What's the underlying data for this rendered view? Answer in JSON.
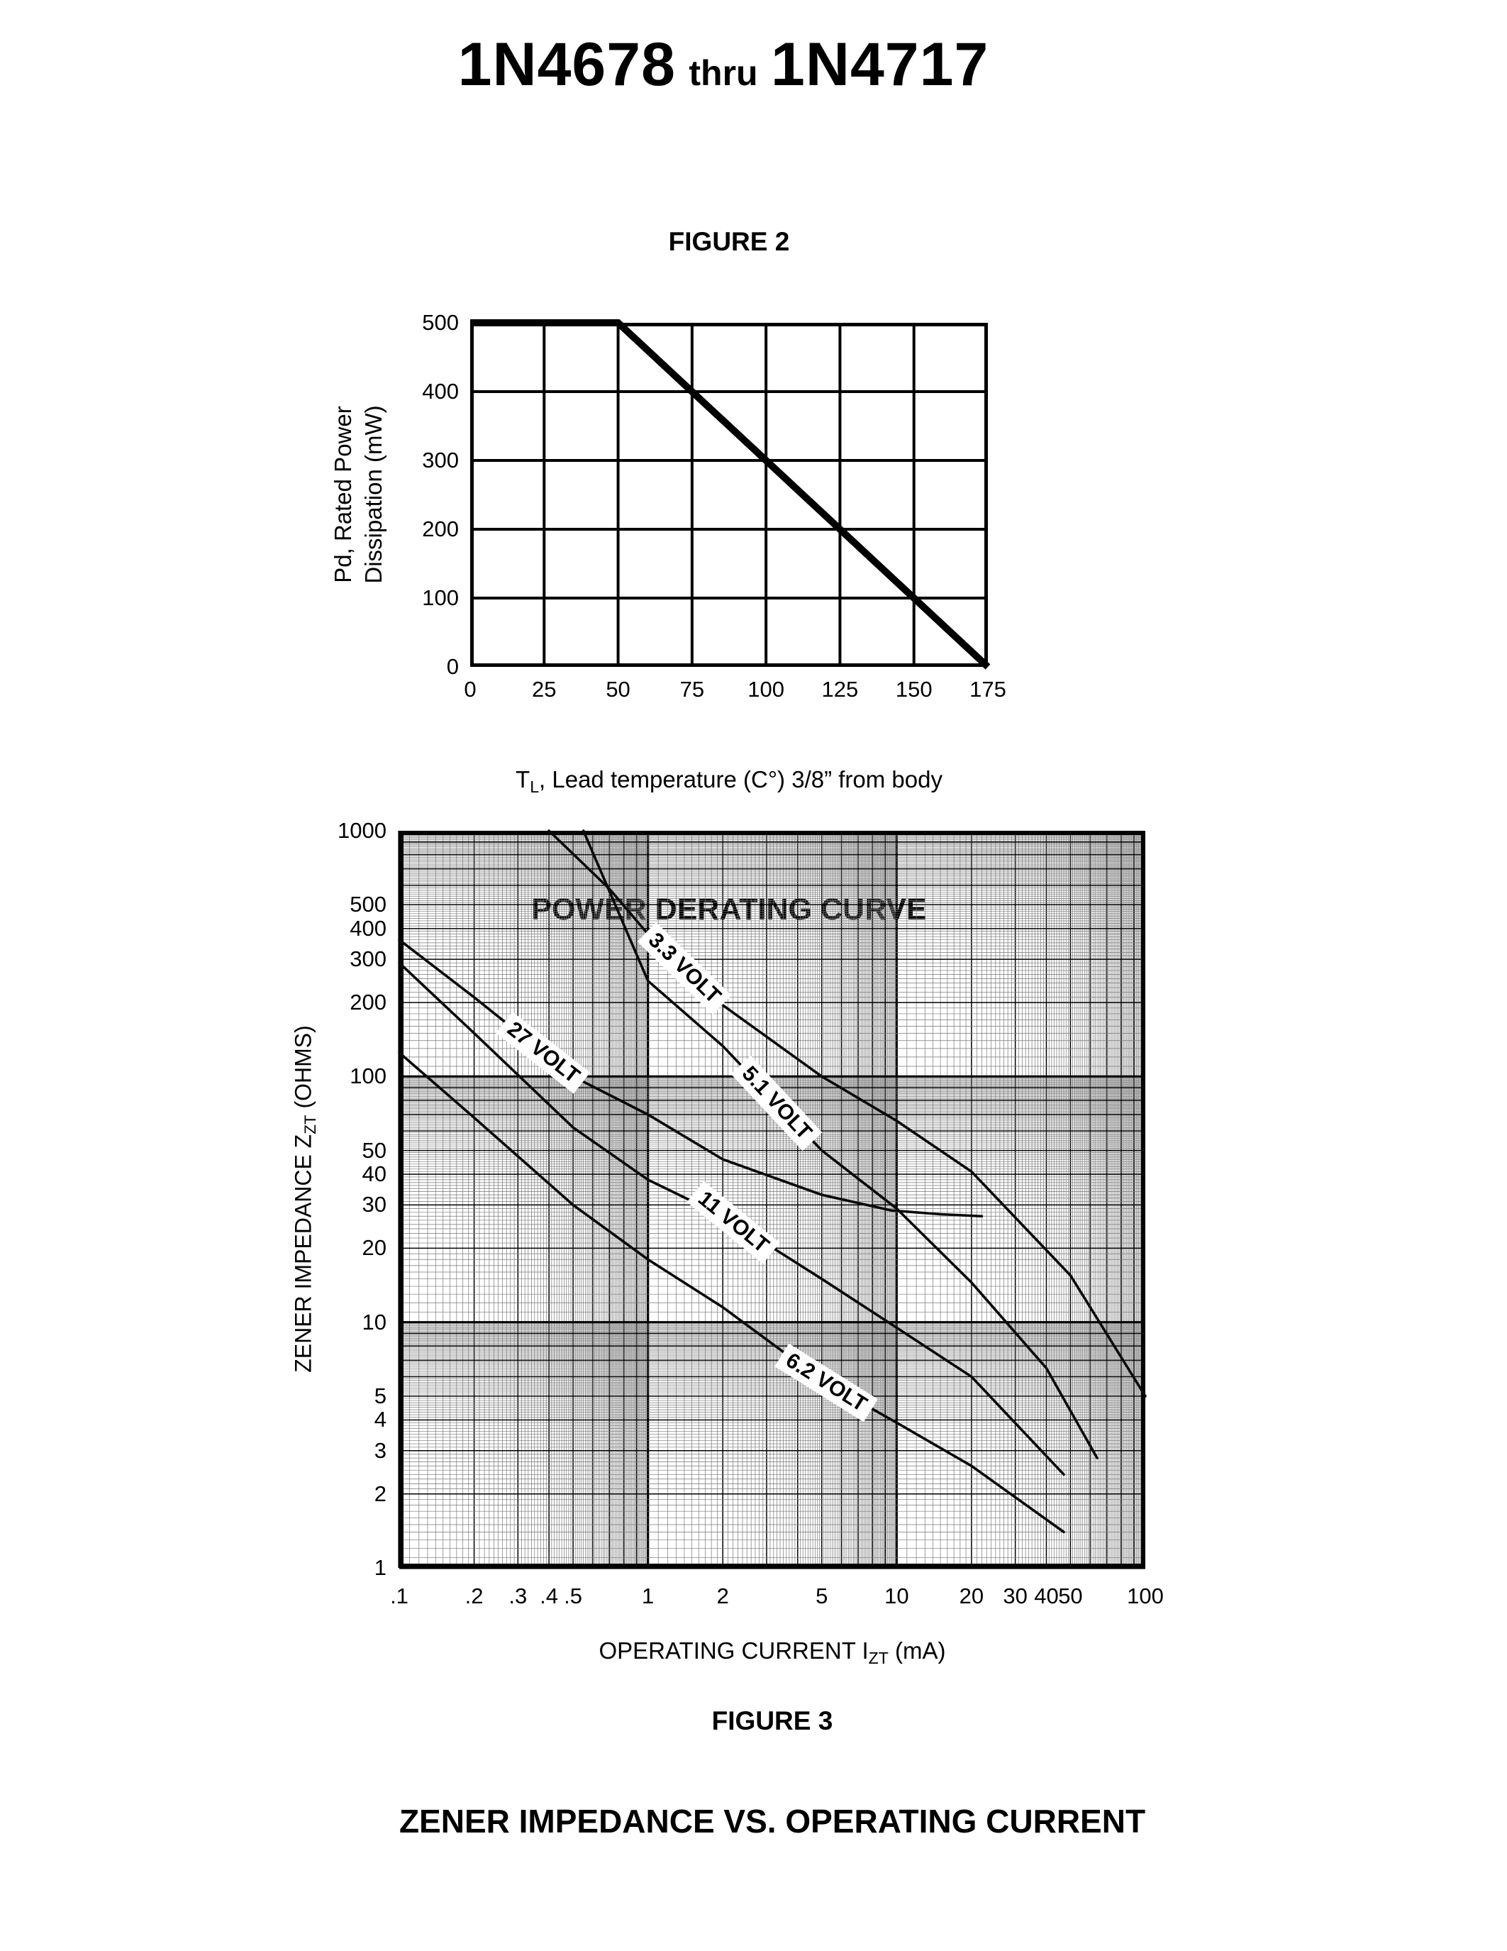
{
  "page": {
    "title_part1": "1N4678",
    "title_thru": "thru",
    "title_part2": "1N4717",
    "ink_color": "#000000",
    "paper_color": "#ffffff"
  },
  "figure2": {
    "heading": "FIGURE 2",
    "caption": "POWER DERATING CURVE",
    "y_axis_label_line1": "Pd, Rated Power",
    "y_axis_label_line2": "Dissipation (mW)",
    "x_axis_label_pre": "T",
    "x_axis_label_sub": "L",
    "x_axis_label_post": ", Lead temperature (C°) 3/8” from body"
  },
  "figure3": {
    "heading": "FIGURE 3",
    "caption": "ZENER IMPEDANCE VS. OPERATING CURRENT",
    "y_axis_label_pre": "ZENER IMPEDANCE Z",
    "y_axis_label_sub": "ZT",
    "y_axis_label_post": " (OHMS)",
    "x_axis_label_pre": "OPERATING CURRENT I",
    "x_axis_label_sub": "ZT",
    "x_axis_label_post": " (mA)"
  },
  "chart_data": [
    {
      "id": "power-derating-curve",
      "type": "line",
      "title": "FIGURE 2",
      "caption": "POWER DERATING CURVE",
      "xlabel": "TL, Lead temperature (C°) 3/8” from body",
      "ylabel": "Pd, Rated Power Dissipation (mW)",
      "xlim": [
        0,
        175
      ],
      "ylim": [
        0,
        500
      ],
      "x_ticks": [
        0,
        25,
        50,
        75,
        100,
        125,
        150,
        175
      ],
      "y_ticks": [
        0,
        100,
        200,
        300,
        400,
        500
      ],
      "grid": true,
      "legend": "none",
      "series": [
        {
          "name": "rated-power-dissipation",
          "points": [
            [
              0,
              500
            ],
            [
              50,
              500
            ],
            [
              175,
              0
            ]
          ]
        }
      ]
    },
    {
      "id": "zener-impedance-vs-operating-current",
      "type": "line",
      "title": "FIGURE 3",
      "caption": "ZENER IMPEDANCE VS. OPERATING CURRENT",
      "xlabel": "OPERATING CURRENT IZT (mA)",
      "ylabel": "ZENER IMPEDANCE ZZT (OHMS)",
      "x_scale": "log",
      "y_scale": "log",
      "xlim": [
        0.1,
        100
      ],
      "ylim": [
        1,
        1000
      ],
      "x_tick_values": [
        0.1,
        0.2,
        0.3,
        0.4,
        0.5,
        1,
        2,
        5,
        10,
        20,
        30,
        40,
        50,
        100
      ],
      "x_tick_labels": [
        ".1",
        ".2",
        ".3",
        ".4",
        ".5",
        "1",
        "2",
        "5",
        "10",
        "20",
        "30",
        "40",
        "50",
        "100"
      ],
      "y_tick_values": [
        1000,
        500,
        400,
        300,
        200,
        100,
        50,
        40,
        30,
        20,
        10,
        5,
        4,
        3,
        2,
        1
      ],
      "grid": true,
      "legend": "inline-curve-labels",
      "series": [
        {
          "name": "3.3 VOLT",
          "points": [
            [
              0.4,
              1000
            ],
            [
              0.7,
              580
            ],
            [
              1,
              380
            ],
            [
              2,
              195
            ],
            [
              5,
              100
            ],
            [
              10,
              66
            ],
            [
              20,
              41
            ],
            [
              50,
              15.5
            ],
            [
              100,
              5
            ]
          ],
          "label_at_x": 1.4,
          "label_angle": 44
        },
        {
          "name": "5.1 VOLT",
          "points": [
            [
              0.55,
              1000
            ],
            [
              1,
              245
            ],
            [
              2,
              133
            ],
            [
              5,
              50
            ],
            [
              10,
              29
            ],
            [
              20,
              14.5
            ],
            [
              40,
              6.5
            ],
            [
              64,
              2.8
            ]
          ],
          "label_at_x": 3.3,
          "label_angle": 47
        },
        {
          "name": "27 VOLT",
          "points": [
            [
              0.1,
              360
            ],
            [
              0.2,
              210
            ],
            [
              0.5,
              100
            ],
            [
              1,
              70
            ],
            [
              2,
              46
            ],
            [
              5,
              33
            ],
            [
              9.5,
              28.5
            ],
            [
              15,
              27.5
            ],
            [
              22,
              27
            ]
          ],
          "label_at_x": 0.38,
          "label_angle": 38
        },
        {
          "name": "11 VOLT",
          "points": [
            [
              0.1,
              290
            ],
            [
              0.2,
              150
            ],
            [
              0.5,
              62
            ],
            [
              1,
              38
            ],
            [
              2,
              27
            ],
            [
              5,
              15
            ],
            [
              10,
              9.5
            ],
            [
              20,
              6
            ],
            [
              47,
              2.4
            ]
          ],
          "label_at_x": 2.2,
          "label_angle": 39
        },
        {
          "name": "6.2 VOLT",
          "points": [
            [
              0.1,
              125
            ],
            [
              0.2,
              68
            ],
            [
              0.5,
              30
            ],
            [
              1,
              18
            ],
            [
              2,
              11.5
            ],
            [
              5,
              5.8
            ],
            [
              10,
              3.9
            ],
            [
              20,
              2.6
            ],
            [
              47,
              1.4
            ]
          ],
          "label_at_x": 5.2,
          "label_angle": 32
        }
      ]
    }
  ]
}
